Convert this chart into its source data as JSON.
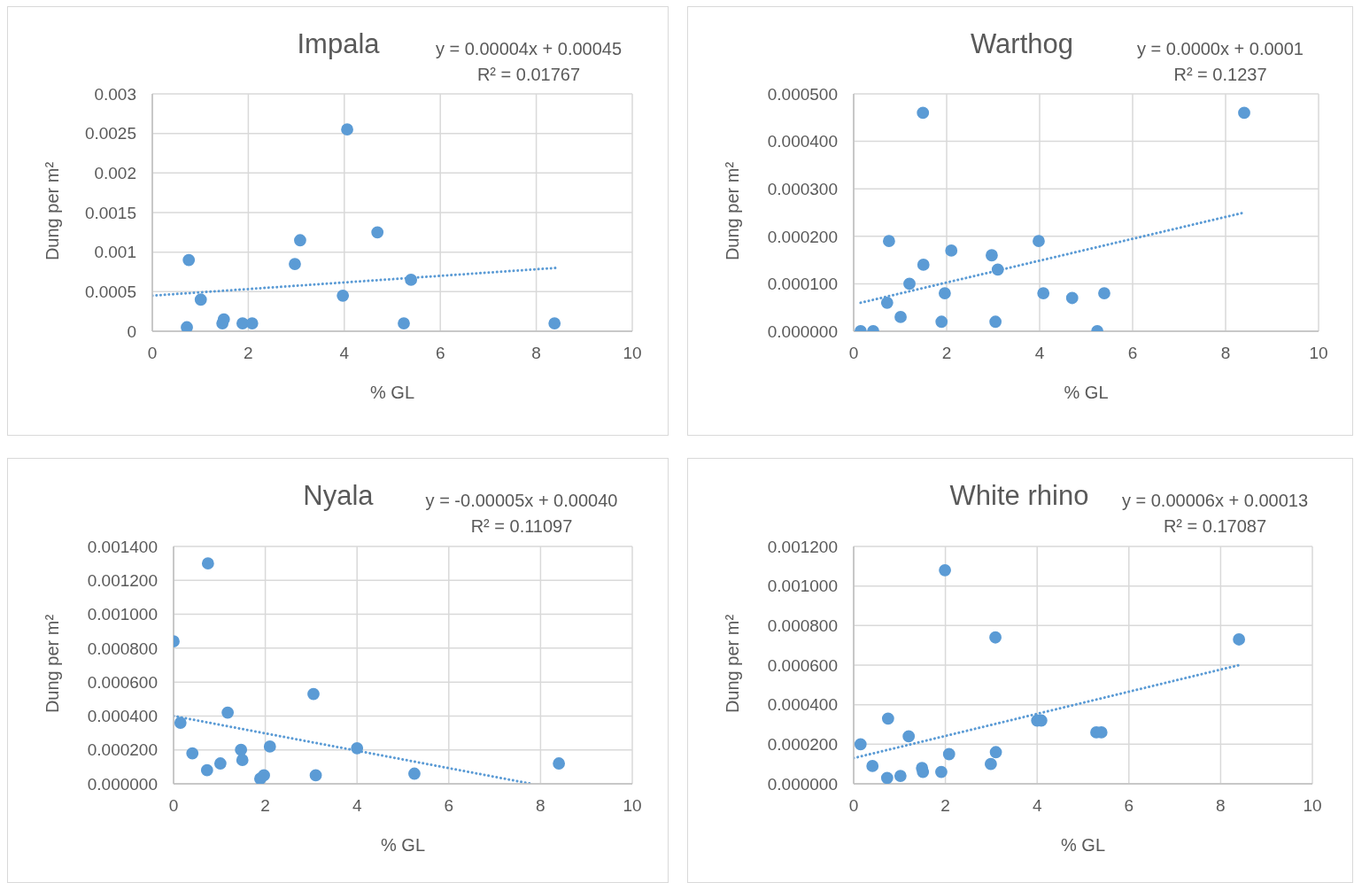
{
  "chart_data": [
    {
      "type": "scatter",
      "title": "Impala",
      "xlabel": "% GL",
      "ylabel": "Dung per m²",
      "annotations": [
        "y = 0.00004x + 0.00045",
        "R² = 0.01767"
      ],
      "xlim": [
        0,
        10
      ],
      "xticks": [
        0,
        2,
        4,
        6,
        8,
        10
      ],
      "ylim": [
        0,
        0.003
      ],
      "yticks": [
        0,
        0.0005,
        0.001,
        0.0015,
        0.002,
        0.0025,
        0.003
      ],
      "grid": true,
      "marker": "circle",
      "series": [
        {
          "color": "#5b9bd5",
          "x": [
            0.72,
            0.76,
            1.01,
            1.46,
            1.49,
            1.88,
            2.08,
            2.97,
            3.08,
            3.97,
            4.06,
            4.69,
            5.24,
            5.39,
            8.38
          ],
          "values": [
            5e-05,
            0.0009,
            0.0004,
            0.0001,
            0.00015,
            0.0001,
            0.0001,
            0.00085,
            0.00115,
            0.00045,
            0.00255,
            0.00125,
            0.0001,
            0.00065,
            0.0001
          ]
        },
        {
          "type": "line",
          "marker": "none",
          "color": "#5b9bd5",
          "line_style": "dotted",
          "x": [
            0,
            8.4
          ],
          "values": [
            0.00045,
            0.0008
          ]
        }
      ]
    },
    {
      "type": "scatter",
      "title": "Warthog",
      "xlabel": "% GL",
      "ylabel": "Dung per m²",
      "annotations": [
        "y = 0.0000x + 0.0001",
        "R² = 0.1237"
      ],
      "xlim": [
        0,
        10
      ],
      "xticks": [
        0,
        2,
        4,
        6,
        8,
        10
      ],
      "ylim": [
        0,
        0.0005
      ],
      "yticks": [
        {
          "value": 0,
          "label": "0.000000"
        },
        {
          "value": 0.0001,
          "label": "0.000100"
        },
        {
          "value": 0.0002,
          "label": "0.000200"
        },
        {
          "value": 0.0003,
          "label": "0.000300"
        },
        {
          "value": 0.0004,
          "label": "0.000400"
        },
        {
          "value": 0.0005,
          "label": "0.000500"
        }
      ],
      "grid": true,
      "marker": "circle",
      "series": [
        {
          "color": "#5b9bd5",
          "x": [
            0.15,
            0.42,
            0.76,
            0.72,
            1.01,
            1.2,
            1.49,
            1.5,
            1.89,
            1.96,
            2.1,
            2.97,
            3.05,
            3.1,
            3.98,
            4.08,
            4.7,
            5.24,
            5.39,
            8.4
          ],
          "values": [
            0,
            0,
            0.00019,
            6e-05,
            3e-05,
            0.0001,
            0.00046,
            0.00014,
            2e-05,
            8e-05,
            0.00017,
            0.00016,
            2e-05,
            0.00013,
            0.00019,
            8e-05,
            7e-05,
            0,
            8e-05,
            0.00046
          ]
        },
        {
          "type": "line",
          "marker": "none",
          "color": "#5b9bd5",
          "line_style": "dotted",
          "x": [
            0.15,
            8.4
          ],
          "values": [
            6e-05,
            0.00025
          ]
        }
      ]
    },
    {
      "type": "scatter",
      "title": "Nyala",
      "xlabel": "% GL",
      "ylabel": "Dung per m²",
      "annotations": [
        "y = -0.00005x + 0.00040",
        "R² = 0.11097"
      ],
      "xlim": [
        0,
        10
      ],
      "xticks": [
        0,
        2,
        4,
        6,
        8,
        10
      ],
      "ylim": [
        0,
        0.0014
      ],
      "yticks": [
        {
          "value": 0,
          "label": "0.000000"
        },
        {
          "value": 0.0002,
          "label": "0.000200"
        },
        {
          "value": 0.0004,
          "label": "0.000400"
        },
        {
          "value": 0.0006,
          "label": "0.000600"
        },
        {
          "value": 0.0008,
          "label": "0.000800"
        },
        {
          "value": 0.001,
          "label": "0.001000"
        },
        {
          "value": 0.0012,
          "label": "0.001200"
        },
        {
          "value": 0.0014,
          "label": "0.001400"
        }
      ],
      "grid": true,
      "marker": "circle",
      "series": [
        {
          "color": "#5b9bd5",
          "x": [
            0,
            0.15,
            0.41,
            0.75,
            0.73,
            1.02,
            1.18,
            1.47,
            1.5,
            1.89,
            1.97,
            2.1,
            3.05,
            3.1,
            4.0,
            5.25,
            8.4
          ],
          "values": [
            0.00084,
            0.00036,
            0.00018,
            0.0013,
            8e-05,
            0.00012,
            0.00042,
            0.0002,
            0.00014,
            3e-05,
            5e-05,
            0.00022,
            0.00053,
            5e-05,
            0.00021,
            6e-05,
            0.00012
          ]
        },
        {
          "type": "line",
          "marker": "none",
          "color": "#5b9bd5",
          "line_style": "dotted",
          "x": [
            0,
            7.8
          ],
          "values": [
            0.0004,
            0
          ]
        }
      ]
    },
    {
      "type": "scatter",
      "title": "White rhino",
      "xlabel": "% GL",
      "ylabel": "Dung per m²",
      "annotations": [
        "y = 0.00006x + 0.00013",
        "R² = 0.17087"
      ],
      "xlim": [
        0,
        10
      ],
      "xticks": [
        0,
        2,
        4,
        6,
        8,
        10
      ],
      "ylim": [
        0,
        0.0012
      ],
      "yticks": [
        {
          "value": 0,
          "label": "0.000000"
        },
        {
          "value": 0.0002,
          "label": "0.000200"
        },
        {
          "value": 0.0004,
          "label": "0.000400"
        },
        {
          "value": 0.0006,
          "label": "0.000600"
        },
        {
          "value": 0.0008,
          "label": "0.000800"
        },
        {
          "value": 0.001,
          "label": "0.001000"
        },
        {
          "value": 0.0012,
          "label": "0.001200"
        }
      ],
      "grid": true,
      "marker": "circle",
      "series": [
        {
          "color": "#5b9bd5",
          "x": [
            0.15,
            0.41,
            0.75,
            0.73,
            1.02,
            1.2,
            1.49,
            1.51,
            1.91,
            1.99,
            2.08,
            2.99,
            3.09,
            3.1,
            4.0,
            4.09,
            5.29,
            5.4,
            8.4
          ],
          "values": [
            0.0002,
            9e-05,
            0.00033,
            3e-05,
            4e-05,
            0.00024,
            8e-05,
            6e-05,
            6e-05,
            0.00108,
            0.00015,
            0.0001,
            0.00074,
            0.00016,
            0.00032,
            0.00032,
            0.00026,
            0.00026,
            0.00073
          ]
        },
        {
          "type": "line",
          "marker": "none",
          "color": "#5b9bd5",
          "line_style": "dotted",
          "x": [
            0,
            8.4
          ],
          "values": [
            0.00013,
            0.0006
          ]
        }
      ]
    }
  ]
}
